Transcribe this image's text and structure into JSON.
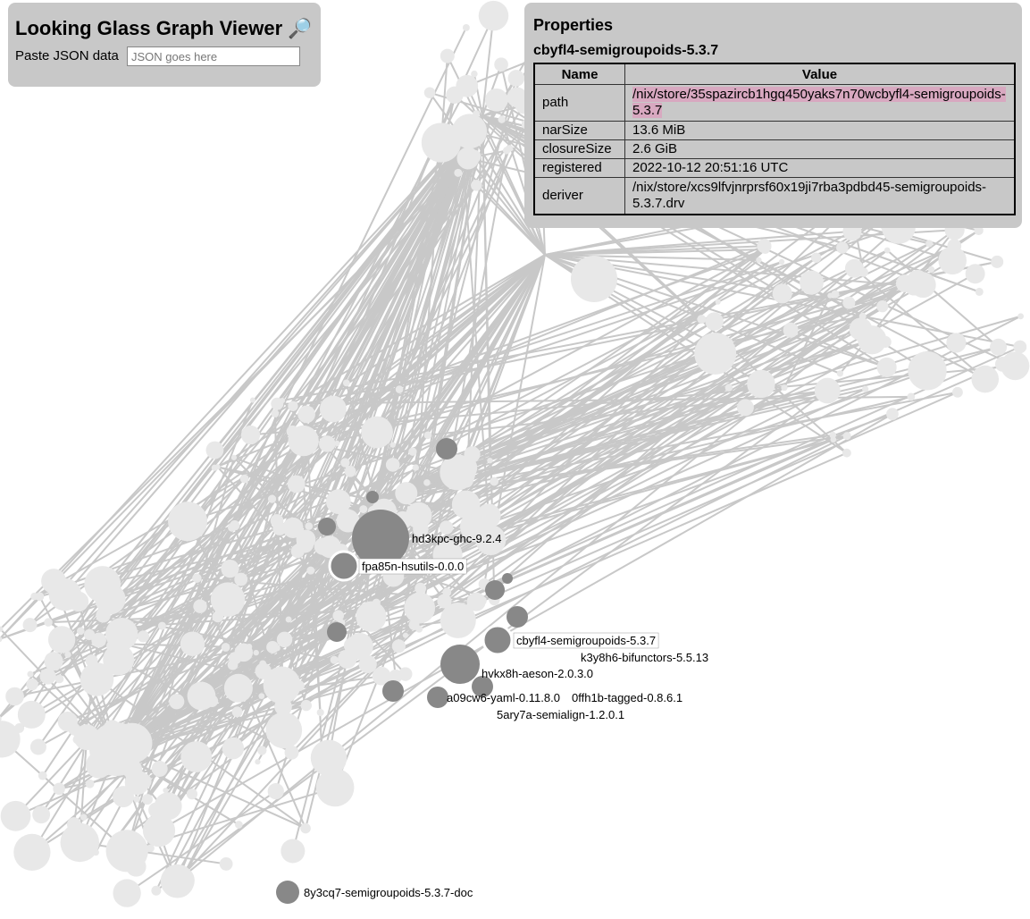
{
  "header": {
    "title": "Looking Glass Graph Viewer",
    "title_icon": "magnifying-glass-icon",
    "paste_label": "Paste JSON data",
    "json_input_placeholder": "JSON goes here",
    "json_input_value": ""
  },
  "properties": {
    "heading": "Properties",
    "selected_name": "cbyfl4-semigroupoids-5.3.7",
    "columns": [
      "Name",
      "Value"
    ],
    "rows": [
      {
        "name": "path",
        "value": "/nix/store/35spazircb1hgq450yaks7n70wcbyfl4-semigroupoids-5.3.7",
        "highlighted": true
      },
      {
        "name": "narSize",
        "value": "13.6 MiB"
      },
      {
        "name": "closureSize",
        "value": "2.6 GiB"
      },
      {
        "name": "registered",
        "value": "2022-10-12 20:51:16 UTC"
      },
      {
        "name": "deriver",
        "value": "/nix/store/xcs9lfvjnrprsf60x19ji7rba3pdbd45-semigroupoids-5.3.7.drv"
      }
    ],
    "highlight_color": "#d8a8c0"
  },
  "graph": {
    "colors": {
      "edge": "#c8c8c8",
      "node": "#e8e8e8",
      "dependency_node": "#888888",
      "selected_ring": "#ffffff"
    },
    "labeled_nodes": [
      {
        "label": "hd3kpc-ghc-9.2.4",
        "boxed": false
      },
      {
        "label": "fpa85n-hsutils-0.0.0",
        "boxed": true
      },
      {
        "label": "cbyfl4-semigroupoids-5.3.7",
        "boxed": true,
        "selected": true
      },
      {
        "label": "k3y8h6-bifunctors-5.5.13",
        "boxed": false
      },
      {
        "label": "hvkx8h-aeson-2.0.3.0",
        "boxed": false
      },
      {
        "label": "a09cw6-yaml-0.11.8.0",
        "boxed": false
      },
      {
        "label": "0ffh1b-tagged-0.8.6.1",
        "boxed": false
      },
      {
        "label": "5ary7a-semialign-1.2.0.1",
        "boxed": false
      },
      {
        "label": "8y3cq7-semigroupoids-5.3.7-doc",
        "boxed": false
      }
    ]
  }
}
